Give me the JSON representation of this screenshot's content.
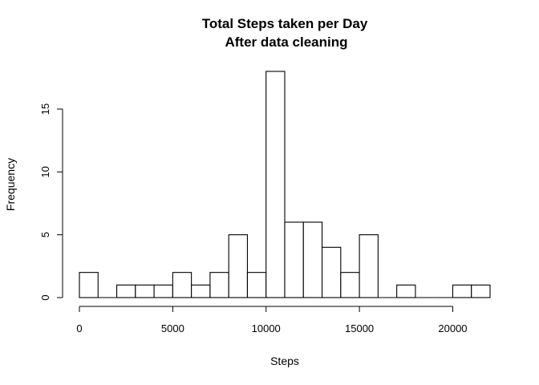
{
  "chart_data": {
    "type": "bar",
    "title_line1": "Total Steps taken per Day",
    "title_line2": "After data cleaning",
    "xlabel": "Steps",
    "ylabel": "Frequency",
    "bin_width": 1000,
    "bins": [
      {
        "x0": 0,
        "x1": 1000,
        "count": 2
      },
      {
        "x0": 1000,
        "x1": 2000,
        "count": 0
      },
      {
        "x0": 2000,
        "x1": 3000,
        "count": 1
      },
      {
        "x0": 3000,
        "x1": 4000,
        "count": 1
      },
      {
        "x0": 4000,
        "x1": 5000,
        "count": 1
      },
      {
        "x0": 5000,
        "x1": 6000,
        "count": 2
      },
      {
        "x0": 6000,
        "x1": 7000,
        "count": 1
      },
      {
        "x0": 7000,
        "x1": 8000,
        "count": 2
      },
      {
        "x0": 8000,
        "x1": 9000,
        "count": 5
      },
      {
        "x0": 9000,
        "x1": 10000,
        "count": 2
      },
      {
        "x0": 10000,
        "x1": 11000,
        "count": 18
      },
      {
        "x0": 11000,
        "x1": 12000,
        "count": 6
      },
      {
        "x0": 12000,
        "x1": 13000,
        "count": 6
      },
      {
        "x0": 13000,
        "x1": 14000,
        "count": 4
      },
      {
        "x0": 14000,
        "x1": 15000,
        "count": 2
      },
      {
        "x0": 15000,
        "x1": 16000,
        "count": 5
      },
      {
        "x0": 16000,
        "x1": 17000,
        "count": 0
      },
      {
        "x0": 17000,
        "x1": 18000,
        "count": 1
      },
      {
        "x0": 18000,
        "x1": 19000,
        "count": 0
      },
      {
        "x0": 19000,
        "x1": 20000,
        "count": 0
      },
      {
        "x0": 20000,
        "x1": 21000,
        "count": 1
      },
      {
        "x0": 21000,
        "x1": 22000,
        "count": 1
      }
    ],
    "xlim": [
      0,
      22000
    ],
    "ylim": [
      0,
      18
    ],
    "x_ticks": [
      0,
      5000,
      10000,
      15000,
      20000
    ],
    "x_tick_labels": [
      "0",
      "5000",
      "10000",
      "15000",
      "20000"
    ],
    "y_ticks": [
      0,
      5,
      10,
      15
    ],
    "y_tick_labels": [
      "0",
      "5",
      "10",
      "15"
    ],
    "grid": false,
    "legend": "none"
  }
}
